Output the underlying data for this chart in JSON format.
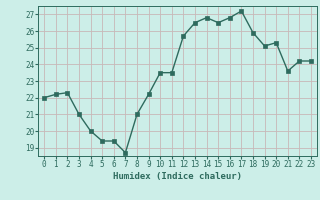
{
  "x": [
    0,
    1,
    2,
    3,
    4,
    5,
    6,
    7,
    8,
    9,
    10,
    11,
    12,
    13,
    14,
    15,
    16,
    17,
    18,
    19,
    20,
    21,
    22,
    23
  ],
  "y": [
    22.0,
    22.2,
    22.3,
    21.0,
    20.0,
    19.4,
    19.4,
    18.7,
    21.0,
    22.2,
    23.5,
    23.5,
    25.7,
    26.5,
    26.8,
    26.5,
    26.8,
    27.2,
    25.9,
    25.1,
    25.3,
    23.6,
    24.2,
    24.2
  ],
  "line_color": "#2e6b5e",
  "marker_color": "#2e6b5e",
  "bg_color": "#cceee8",
  "grid_color": "#c8b8b8",
  "tick_color": "#2e6b5e",
  "xlabel": "Humidex (Indice chaleur)",
  "ylim_min": 18.5,
  "ylim_max": 27.5,
  "xlim_min": -0.5,
  "xlim_max": 23.5,
  "yticks": [
    19,
    20,
    21,
    22,
    23,
    24,
    25,
    26,
    27
  ],
  "xticks": [
    0,
    1,
    2,
    3,
    4,
    5,
    6,
    7,
    8,
    9,
    10,
    11,
    12,
    13,
    14,
    15,
    16,
    17,
    18,
    19,
    20,
    21,
    22,
    23
  ],
  "label_fontsize": 6.5,
  "tick_fontsize": 5.5,
  "linewidth": 1.0,
  "markersize": 2.5
}
